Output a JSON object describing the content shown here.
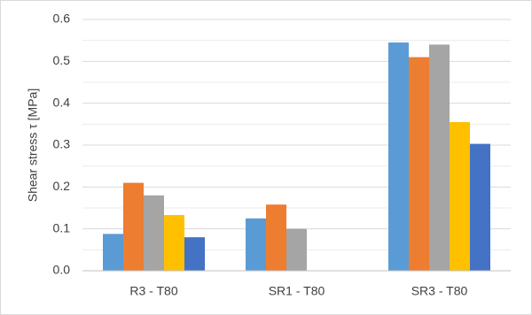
{
  "chart_data": {
    "type": "bar",
    "y_label": "Shear stress τ [MPa]",
    "categories": [
      "R3 - T80",
      "SR1 - T80",
      "SR3 - T80"
    ],
    "series": [
      {
        "color": "#5b9bd5",
        "values": [
          0.088,
          0.125,
          0.545
        ]
      },
      {
        "color": "#ed7d31",
        "values": [
          0.21,
          0.158,
          0.51
        ]
      },
      {
        "color": "#a5a5a5",
        "values": [
          0.18,
          0.1,
          0.54
        ]
      },
      {
        "color": "#ffc000",
        "values": [
          0.133,
          null,
          0.355
        ]
      },
      {
        "color": "#4472c4",
        "values": [
          0.08,
          null,
          0.303
        ]
      }
    ],
    "ylim": [
      0,
      0.6
    ],
    "yticks": [
      {
        "value": 0,
        "label": "0.0"
      },
      0.1,
      0.2,
      0.3,
      0.4,
      0.5,
      0.6
    ],
    "minor_yticks": [
      0.05,
      0.15,
      0.25,
      0.35,
      0.45,
      0.55
    ],
    "grid": true
  }
}
